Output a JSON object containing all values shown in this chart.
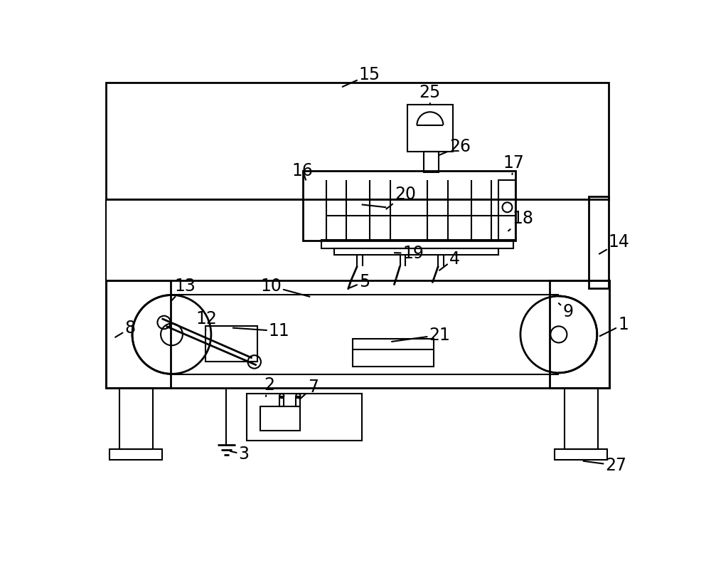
{
  "bg_color": "#ffffff",
  "line_color": "#000000",
  "lw": 1.5,
  "lw2": 2.0,
  "fs": 17
}
